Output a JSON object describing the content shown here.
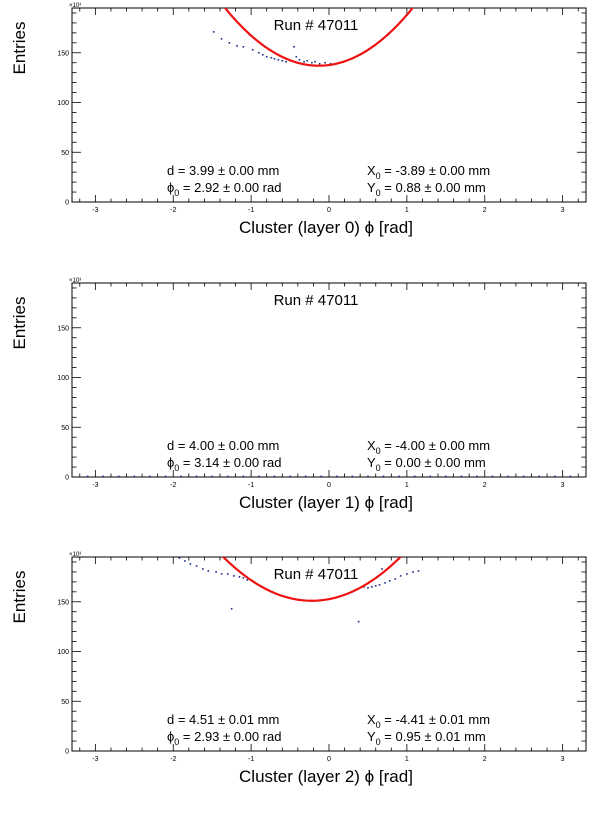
{
  "chart_data": [
    {
      "type": "scatter",
      "run_label": "Run # 47011",
      "xlabel_main": "Cluster (layer 0) ",
      "xlabel_phi": "ϕ",
      "xlabel_unit": " [rad]",
      "ylabel": "Entries",
      "y_exponent_label": "×10³",
      "xlim": [
        -3.3,
        3.3
      ],
      "ylim": [
        0,
        195
      ],
      "x_ticks": [
        -3,
        -2,
        -1,
        0,
        1,
        2,
        3
      ],
      "y_ticks": [
        0,
        50,
        100,
        150
      ],
      "fit": {
        "d": 3.99,
        "phi0": 2.92,
        "x0": -3.89,
        "y0": 0.88,
        "base": 137,
        "curvature": 40,
        "vertex_x": -0.13,
        "color": "#ee1111"
      },
      "stats": [
        {
          "row": "top",
          "col": "left",
          "main": "d = 3.99",
          "sub": "",
          "rest": " ± 0.00 mm"
        },
        {
          "row": "top",
          "col": "right",
          "main": "X",
          "sub": "0",
          "rest": " = -3.89 ± 0.00 mm"
        },
        {
          "row": "bottom",
          "col": "left",
          "main": "ϕ",
          "sub": "0",
          "rest": " = 2.92 ± 0.00 rad"
        },
        {
          "row": "bottom",
          "col": "right",
          "main": "Y",
          "sub": "0",
          "rest": " = 0.88 ± 0.00 mm"
        }
      ],
      "series": [
        {
          "color": "#1a2b8a",
          "points": [
            [
              -1.48,
              171
            ],
            [
              -1.38,
              164
            ],
            [
              -1.28,
              160
            ],
            [
              -1.18,
              157
            ],
            [
              -1.1,
              156
            ],
            [
              -1.02,
              168
            ],
            [
              -0.98,
              153
            ],
            [
              -0.9,
              150
            ],
            [
              -0.85,
              148
            ],
            [
              -0.8,
              146
            ],
            [
              -0.74,
              145
            ],
            [
              -0.7,
              144
            ],
            [
              -0.65,
              143
            ],
            [
              -0.6,
              142
            ],
            [
              -0.55,
              141
            ],
            [
              -0.5,
              142
            ],
            [
              -0.45,
              156
            ],
            [
              -0.42,
              146
            ],
            [
              -0.38,
              143
            ],
            [
              -0.32,
              141
            ],
            [
              -0.28,
              142
            ],
            [
              -0.22,
              140
            ],
            [
              -0.18,
              141
            ],
            [
              -0.12,
              139
            ],
            [
              -0.05,
              140
            ],
            [
              0.02,
              139
            ]
          ]
        }
      ]
    },
    {
      "type": "scatter",
      "run_label": "Run # 47011",
      "xlabel_main": "Cluster (layer 1) ",
      "xlabel_phi": "ϕ",
      "xlabel_unit": " [rad]",
      "ylabel": "Entries",
      "y_exponent_label": "×10³",
      "xlim": [
        -3.3,
        3.3
      ],
      "ylim": [
        0,
        195
      ],
      "x_ticks": [
        -3,
        -2,
        -1,
        0,
        1,
        2,
        3
      ],
      "y_ticks": [
        0,
        50,
        100,
        150
      ],
      "fit": {
        "d": 4.0,
        "phi0": 3.14,
        "x0": -4.0,
        "y0": 0.0,
        "base": 0,
        "curvature": 0,
        "vertex_x": 0,
        "color": "#ee1111"
      },
      "stats": [
        {
          "row": "top",
          "col": "left",
          "main": "d = 4.00",
          "sub": "",
          "rest": " ± 0.00 mm"
        },
        {
          "row": "top",
          "col": "right",
          "main": "X",
          "sub": "0",
          "rest": " = -4.00 ± 0.00 mm"
        },
        {
          "row": "bottom",
          "col": "left",
          "main": "ϕ",
          "sub": "0",
          "rest": " = 3.14 ± 0.00 rad"
        },
        {
          "row": "bottom",
          "col": "right",
          "main": "Y",
          "sub": "0",
          "rest": " = 0.00 ± 0.00 mm"
        }
      ],
      "series": [
        {
          "color": "#1a2b8a",
          "points": [
            [
              -3.1,
              0.6
            ],
            [
              -2.9,
              0.6
            ],
            [
              -2.7,
              0.6
            ],
            [
              -2.5,
              0.6
            ],
            [
              -2.3,
              0.6
            ],
            [
              -2.1,
              0.6
            ],
            [
              -1.9,
              0.6
            ],
            [
              -1.7,
              0.6
            ],
            [
              -1.5,
              0.6
            ],
            [
              -1.3,
              0.6
            ],
            [
              -1.1,
              0.6
            ],
            [
              -0.9,
              0.6
            ],
            [
              -0.7,
              0.6
            ],
            [
              -0.5,
              0.6
            ],
            [
              -0.3,
              0.6
            ],
            [
              -0.1,
              0.6
            ],
            [
              0.1,
              0.6
            ],
            [
              0.3,
              0.6
            ],
            [
              0.5,
              0.6
            ],
            [
              0.7,
              0.6
            ],
            [
              0.9,
              0.6
            ],
            [
              1.1,
              0.6
            ],
            [
              1.3,
              0.6
            ],
            [
              1.5,
              0.6
            ],
            [
              1.7,
              0.6
            ],
            [
              1.9,
              0.6
            ],
            [
              2.1,
              0.6
            ],
            [
              2.3,
              0.6
            ],
            [
              2.5,
              0.6
            ],
            [
              2.7,
              0.6
            ],
            [
              2.9,
              0.6
            ],
            [
              3.1,
              0.6
            ]
          ]
        }
      ]
    },
    {
      "type": "scatter",
      "run_label": "Run # 47011",
      "xlabel_main": "Cluster (layer 2) ",
      "xlabel_phi": "ϕ",
      "xlabel_unit": " [rad]",
      "ylabel": "Entries",
      "y_exponent_label": "×10³",
      "xlim": [
        -3.3,
        3.3
      ],
      "ylim": [
        0,
        195
      ],
      "x_ticks": [
        -3,
        -2,
        -1,
        0,
        1,
        2,
        3
      ],
      "y_ticks": [
        0,
        50,
        100,
        150
      ],
      "fit": {
        "d": 4.51,
        "phi0": 2.93,
        "x0": -4.41,
        "y0": 0.95,
        "base": 151,
        "curvature": 34,
        "vertex_x": -0.22,
        "color": "#ee1111"
      },
      "stats": [
        {
          "row": "top",
          "col": "left",
          "main": "d = 4.51",
          "sub": "",
          "rest": " ± 0.01 mm"
        },
        {
          "row": "top",
          "col": "right",
          "main": "X",
          "sub": "0",
          "rest": " = -4.41 ± 0.01 mm"
        },
        {
          "row": "bottom",
          "col": "left",
          "main": "ϕ",
          "sub": "0",
          "rest": " = 2.93 ± 0.00 rad"
        },
        {
          "row": "bottom",
          "col": "right",
          "main": "Y",
          "sub": "0",
          "rest": " = 0.95 ± 0.01 mm"
        }
      ],
      "series": [
        {
          "color": "#1a2b8a",
          "points": [
            [
              -1.92,
              194
            ],
            [
              -1.85,
              191
            ],
            [
              -1.78,
              188
            ],
            [
              -1.7,
              186
            ],
            [
              -1.62,
              183
            ],
            [
              -1.55,
              181
            ],
            [
              -1.45,
              180
            ],
            [
              -1.38,
              178
            ],
            [
              -1.3,
              178
            ],
            [
              -1.25,
              143
            ],
            [
              -1.22,
              176
            ],
            [
              -1.15,
              175
            ],
            [
              -1.1,
              174
            ],
            [
              -1.05,
              172
            ],
            [
              0.38,
              130
            ],
            [
              0.45,
              165
            ],
            [
              0.5,
              164
            ],
            [
              0.55,
              165
            ],
            [
              0.6,
              166
            ],
            [
              0.65,
              167
            ],
            [
              0.68,
              183
            ],
            [
              0.72,
              169
            ],
            [
              0.78,
              171
            ],
            [
              0.85,
              173
            ],
            [
              0.92,
              176
            ],
            [
              1.0,
              178
            ],
            [
              1.08,
              180
            ],
            [
              1.15,
              181
            ]
          ]
        }
      ]
    }
  ]
}
